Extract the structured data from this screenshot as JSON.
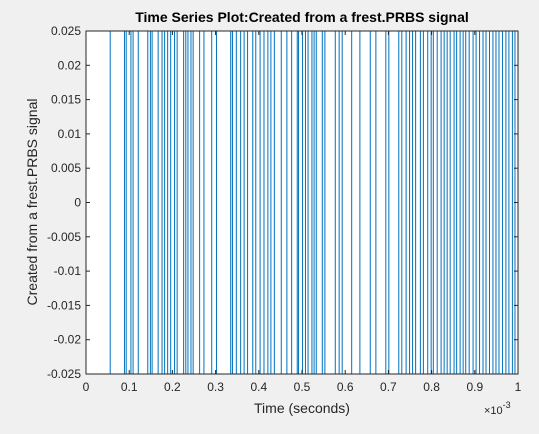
{
  "chart_data": {
    "type": "line",
    "title": "Time Series Plot:Created from a frest.PRBS signal",
    "xlabel": "Time (seconds)",
    "ylabel": "Created from a frest.PRBS signal",
    "x_exponent_base": "×10",
    "x_exponent_power": "-3",
    "xlim": [
      0,
      0.001
    ],
    "ylim": [
      -0.025,
      0.025
    ],
    "xtick_values": [
      0,
      0.0001,
      0.0002,
      0.0003,
      0.0004,
      0.0005,
      0.0006,
      0.0007,
      0.0008,
      0.0009,
      0.001
    ],
    "xtick_labels": [
      "0",
      "0.1",
      "0.2",
      "0.3",
      "0.4",
      "0.5",
      "0.6",
      "0.7",
      "0.8",
      "0.9",
      "1"
    ],
    "ytick_values": [
      -0.025,
      -0.02,
      -0.015,
      -0.01,
      -0.005,
      0,
      0.005,
      0.01,
      0.015,
      0.02,
      0.025
    ],
    "ytick_labels": [
      "-0.025",
      "-0.02",
      "-0.015",
      "-0.01",
      "-0.005",
      "0",
      "0.005",
      "0.01",
      "0.015",
      "0.02",
      "0.025"
    ],
    "grid": false,
    "line_color": "#0072bd",
    "series": [
      {
        "step_times": [
          5.6e-05,
          8.9e-05,
          9.3e-05,
          0.000104,
          0.000109,
          0.000121,
          0.000143,
          0.000149,
          0.000153,
          0.000167,
          0.000176,
          0.000182,
          0.000189,
          0.000196,
          0.000205,
          0.000211,
          0.000226,
          0.000231,
          0.000236,
          0.000243,
          0.000248,
          0.000263,
          0.000273,
          0.000291,
          0.000302,
          0.000335,
          0.000339,
          0.000348,
          0.000358,
          0.000366,
          0.000374,
          0.000386,
          0.000393,
          0.000403,
          0.000412,
          0.000421,
          0.000428,
          0.000436,
          0.000452,
          0.000465,
          0.000476,
          0.000489,
          0.000492,
          0.000501,
          0.000508,
          0.000514,
          0.000523,
          0.000528,
          0.000533,
          0.000547,
          0.000553,
          0.000577,
          0.000586,
          0.000593,
          0.000615,
          0.000634,
          0.000658,
          0.000671,
          0.000694,
          0.000701,
          0.000724,
          0.000731,
          0.000741,
          0.000749,
          0.000756,
          0.000763,
          0.000774,
          0.000781,
          0.000791,
          0.000799,
          0.000804,
          0.000813,
          0.000822,
          0.000829,
          0.000836,
          0.000843,
          0.000852,
          0.000858,
          0.000866,
          0.000873,
          0.000879,
          0.000887,
          0.000896,
          0.000903,
          0.000911,
          0.000919,
          0.000926,
          0.000934,
          0.000942,
          0.000949,
          0.000956,
          0.000964,
          0.000972,
          0.000979,
          0.000987,
          0.000993
        ],
        "initial_value": -0.025,
        "high": 0.025,
        "low": -0.025
      }
    ]
  }
}
